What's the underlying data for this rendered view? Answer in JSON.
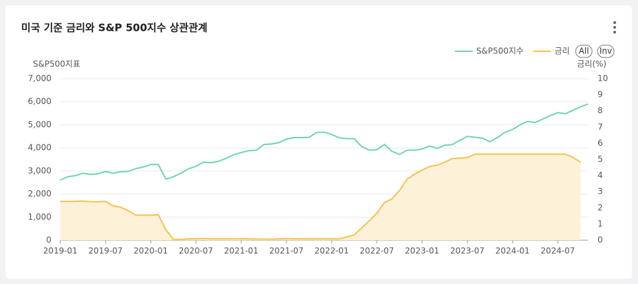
{
  "chart_data": {
    "type": "line",
    "title": "미국 기준 금리와 S&P 500지수 상관관계",
    "ylabel": "S&P500지표",
    "y2label": "금리(%)",
    "buttons": [
      "All",
      "Inv"
    ],
    "legend": "top-right",
    "grid": true,
    "categories": [
      "2019-01",
      null,
      null,
      null,
      null,
      null,
      "2019-07",
      null,
      null,
      null,
      null,
      null,
      "2020-01",
      null,
      null,
      null,
      null,
      null,
      "2020-07",
      null,
      null,
      null,
      null,
      null,
      "2021-01",
      null,
      null,
      null,
      null,
      null,
      "2021-07",
      null,
      null,
      null,
      null,
      null,
      "2022-01",
      null,
      null,
      null,
      null,
      null,
      "2022-07",
      null,
      null,
      null,
      null,
      null,
      "2023-01",
      null,
      null,
      null,
      null,
      null,
      "2023-07",
      null,
      null,
      null,
      null,
      null,
      "2024-01",
      null,
      null,
      null,
      null,
      null,
      "2024-07",
      null,
      null,
      null,
      null
    ],
    "ylim": [
      0,
      7000
    ],
    "yticks": [
      0,
      {
        "value": 1000,
        "label": "1,000"
      },
      {
        "value": 2000,
        "label": "2,000"
      },
      {
        "value": 3000,
        "label": "3,000"
      },
      {
        "value": 4000,
        "label": "4,000"
      },
      {
        "value": 5000,
        "label": "5,000"
      },
      {
        "value": 6000,
        "label": "6,000"
      },
      {
        "value": 7000,
        "label": "7,000"
      }
    ],
    "y2lim": [
      0,
      10
    ],
    "y2ticks": [
      0,
      1,
      2,
      3,
      4,
      5,
      6,
      7,
      8,
      9,
      10
    ],
    "series": [
      {
        "name": "S&P500지수",
        "color": "#6fd4b1",
        "axis": "y",
        "values": [
          2610,
          2750,
          2800,
          2900,
          2850,
          2880,
          2980,
          2900,
          2970,
          2980,
          3100,
          3170,
          3280,
          3280,
          2650,
          2750,
          2900,
          3100,
          3200,
          3380,
          3360,
          3420,
          3550,
          3700,
          3800,
          3880,
          3900,
          4150,
          4170,
          4230,
          4380,
          4450,
          4450,
          4460,
          4670,
          4680,
          4580,
          4440,
          4400,
          4400,
          4050,
          3900,
          3920,
          4150,
          3850,
          3720,
          3900,
          3900,
          3950,
          4080,
          3980,
          4120,
          4140,
          4330,
          4500,
          4460,
          4420,
          4270,
          4450,
          4680,
          4800,
          5000,
          5150,
          5100,
          5250,
          5400,
          5530,
          5480,
          5630,
          5780,
          5900
        ]
      },
      {
        "name": "금리",
        "color": "#f5c24c",
        "fill": "#fdf1d8",
        "axis": "y2",
        "values": [
          2.4,
          2.4,
          2.41,
          2.42,
          2.39,
          2.38,
          2.4,
          2.13,
          2.04,
          1.83,
          1.55,
          1.55,
          1.55,
          1.58,
          0.65,
          0.05,
          0.05,
          0.08,
          0.09,
          0.1,
          0.09,
          0.09,
          0.09,
          0.09,
          0.09,
          0.08,
          0.07,
          0.07,
          0.06,
          0.08,
          0.1,
          0.09,
          0.08,
          0.08,
          0.08,
          0.08,
          0.08,
          0.08,
          0.2,
          0.33,
          0.77,
          1.21,
          1.68,
          2.33,
          2.56,
          3.08,
          3.78,
          4.1,
          4.33,
          4.57,
          4.65,
          4.83,
          5.06,
          5.08,
          5.12,
          5.33,
          5.33,
          5.33,
          5.33,
          5.33,
          5.33,
          5.33,
          5.33,
          5.33,
          5.33,
          5.33,
          5.33,
          5.33,
          5.13,
          4.83,
          null
        ]
      }
    ]
  }
}
